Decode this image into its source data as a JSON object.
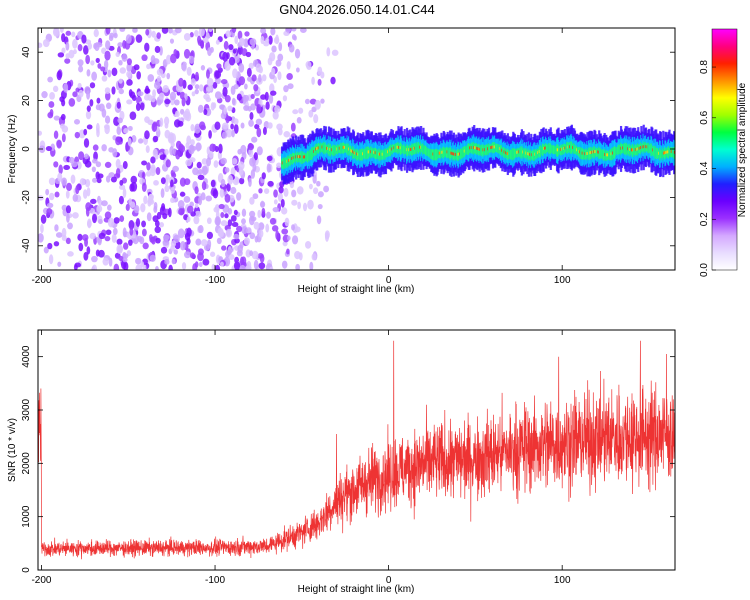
{
  "title": "GN04.2026.050.14.01.C44",
  "chart_data": [
    {
      "type": "heatmap",
      "name": "spectrogram",
      "xlabel": "Height of straight line (km)",
      "ylabel": "Frequency (Hz)",
      "xlim": [
        -202,
        165
      ],
      "ylim": [
        -50,
        50
      ],
      "xticks": [
        -200,
        -100,
        0,
        100
      ],
      "yticks": [
        -40,
        -20,
        0,
        20,
        40
      ],
      "colorbar": {
        "label": "Normalized spectral amplitude",
        "range": [
          0,
          0.95
        ],
        "ticks": [
          0.0,
          0.2,
          0.4,
          0.6,
          0.8
        ],
        "colors": [
          "#ffffff",
          "#e8dcff",
          "#d4a8ff",
          "#9b30ff",
          "#6a00ff",
          "#2020ff",
          "#00b0ff",
          "#00ffd0",
          "#00ff40",
          "#a0ff00",
          "#ffff00",
          "#ff9000",
          "#ff2000",
          "#ff0080",
          "#ff00ff"
        ]
      },
      "features": {
        "noise_region_x": [
          -202,
          -55
        ],
        "signal_start_x": -62,
        "signal_frequency_hz": 0,
        "signal_band_hz": [
          -8,
          8
        ]
      }
    },
    {
      "type": "line",
      "name": "snr",
      "xlabel": "Height of straight line (km)",
      "ylabel": "SNR (10 * v/v)",
      "xlim": [
        -202,
        165
      ],
      "ylim": [
        0,
        4500
      ],
      "xticks": [
        -200,
        -100,
        0,
        100
      ],
      "yticks": [
        0,
        1000,
        2000,
        3000,
        4000
      ],
      "color": "#ee3333",
      "trend": [
        {
          "x": -200,
          "y": 400
        },
        {
          "x": -100,
          "y": 420
        },
        {
          "x": -70,
          "y": 450
        },
        {
          "x": -50,
          "y": 700
        },
        {
          "x": -40,
          "y": 900
        },
        {
          "x": -30,
          "y": 1300
        },
        {
          "x": -20,
          "y": 1500
        },
        {
          "x": -10,
          "y": 1700
        },
        {
          "x": 0,
          "y": 1800
        },
        {
          "x": 20,
          "y": 2000
        },
        {
          "x": 50,
          "y": 2100
        },
        {
          "x": 80,
          "y": 2300
        },
        {
          "x": 100,
          "y": 2400
        },
        {
          "x": 130,
          "y": 2500
        },
        {
          "x": 165,
          "y": 2550
        }
      ],
      "peaks": [
        {
          "x": 3,
          "y": 4300
        },
        {
          "x": -30,
          "y": 2550
        },
        {
          "x": 145,
          "y": 4300
        },
        {
          "x": 160,
          "y": 4050
        },
        {
          "x": 98,
          "y": 4000
        }
      ]
    }
  ]
}
